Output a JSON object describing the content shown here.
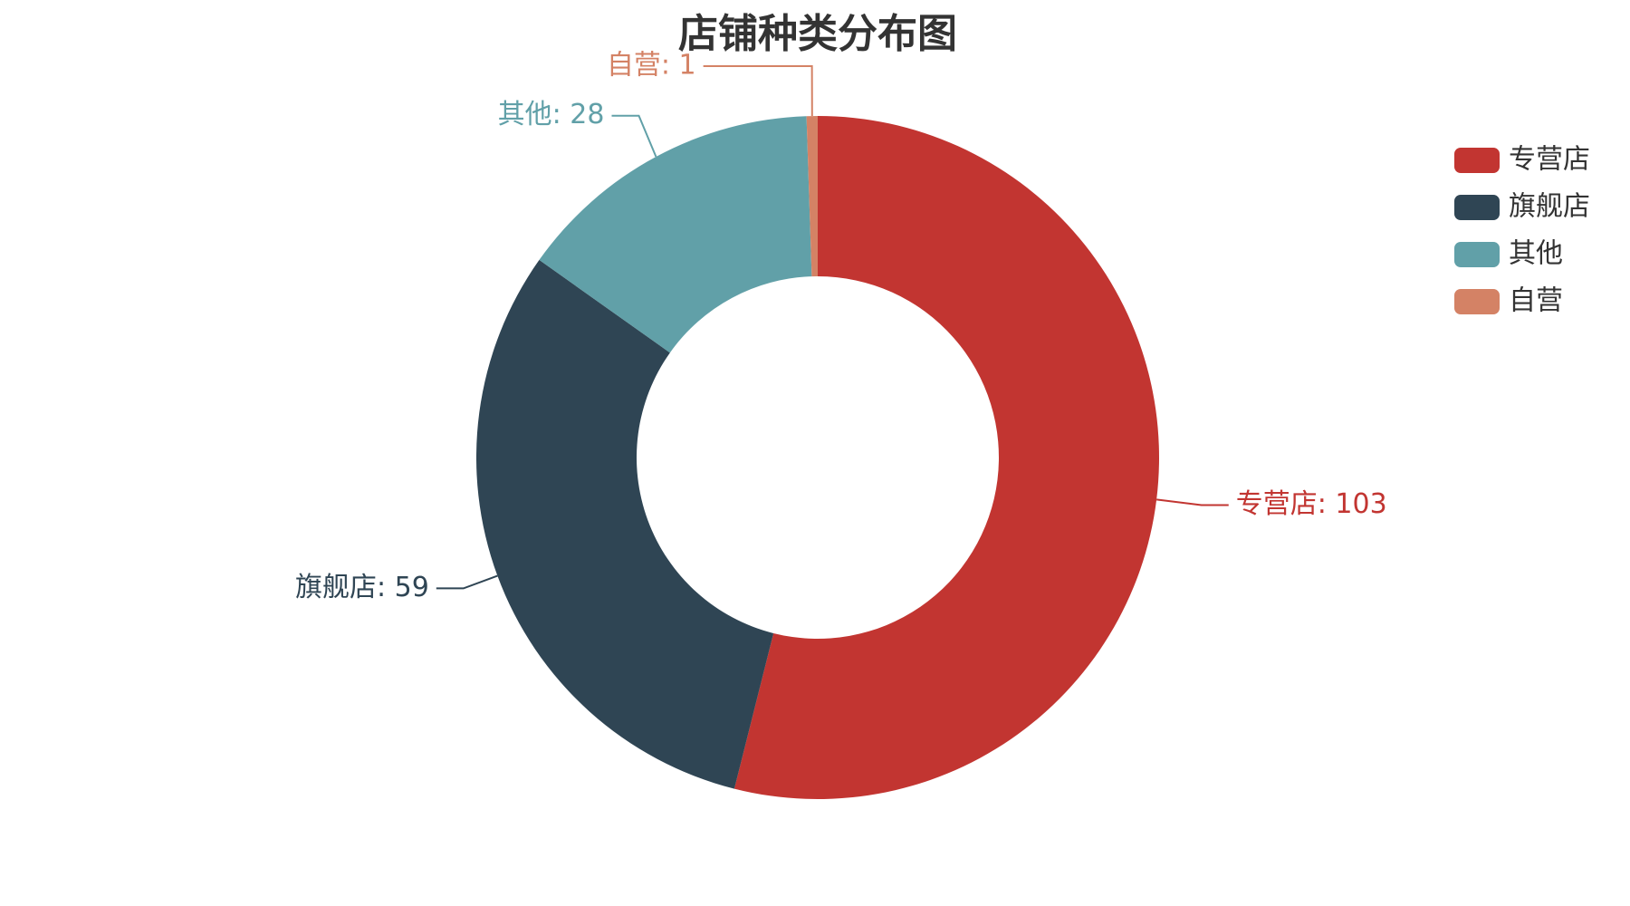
{
  "chart_data": {
    "type": "pie",
    "donut": true,
    "title": "店铺种类分布图",
    "label_separator": ": ",
    "legend_placement": "top-right",
    "series": [
      {
        "name": "专营店",
        "value": 103,
        "color": "#c23531"
      },
      {
        "name": "旗舰店",
        "value": 59,
        "color": "#2f4554"
      },
      {
        "name": "其他",
        "value": 28,
        "color": "#61a0a8"
      },
      {
        "name": "自营",
        "value": 1,
        "color": "#d48265"
      }
    ]
  }
}
